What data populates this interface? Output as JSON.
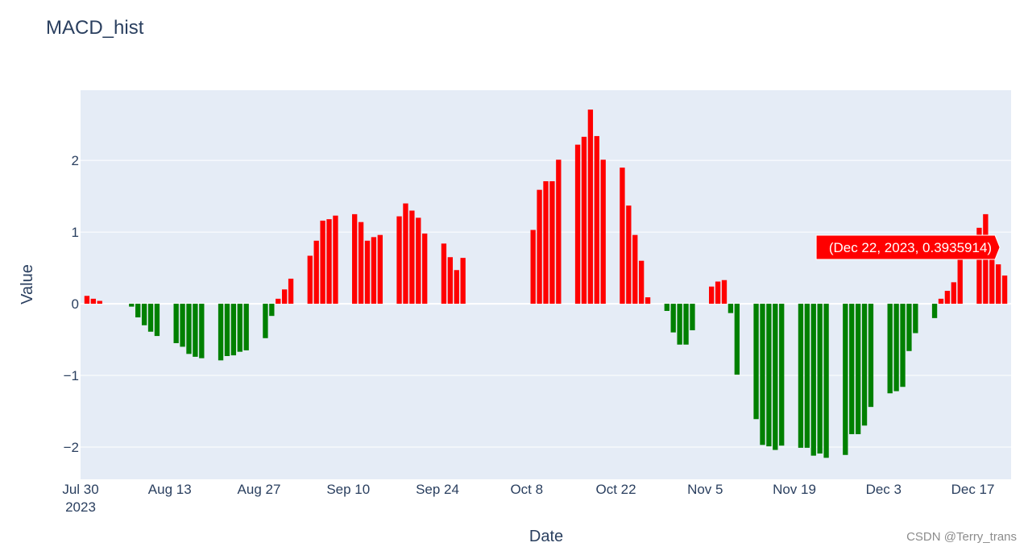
{
  "chart_data": {
    "type": "bar",
    "title": "MACD_hist",
    "xlabel": "Date",
    "ylabel": "Value",
    "x_start": "2023-07-31",
    "x_range": [
      "2023-07-30",
      "2023-12-23"
    ],
    "ylim": [
      -2.45,
      2.98
    ],
    "yticks": [
      -2,
      -1,
      0,
      1,
      2
    ],
    "ytick_labels": [
      "−2",
      "−1",
      "0",
      "1",
      "2"
    ],
    "xticks": [
      {
        "date": "2023-07-30",
        "label": "Jul 30",
        "sublabel": "2023"
      },
      {
        "date": "2023-08-13",
        "label": "Aug 13"
      },
      {
        "date": "2023-08-27",
        "label": "Aug 27"
      },
      {
        "date": "2023-09-10",
        "label": "Sep 10"
      },
      {
        "date": "2023-09-24",
        "label": "Sep 24"
      },
      {
        "date": "2023-10-08",
        "label": "Oct 8"
      },
      {
        "date": "2023-10-22",
        "label": "Oct 22"
      },
      {
        "date": "2023-11-05",
        "label": "Nov 5"
      },
      {
        "date": "2023-11-19",
        "label": "Nov 19"
      },
      {
        "date": "2023-12-03",
        "label": "Dec 3"
      },
      {
        "date": "2023-12-17",
        "label": "Dec 17"
      }
    ],
    "grid": true,
    "positive_color": "#ff0000",
    "negative_color": "#008000",
    "plot_bg": "#e5ecf6",
    "points": [
      {
        "x": "2023-07-31",
        "y": 0.11
      },
      {
        "x": "2023-08-01",
        "y": 0.07
      },
      {
        "x": "2023-08-02",
        "y": 0.04
      },
      {
        "x": "2023-08-07",
        "y": -0.04
      },
      {
        "x": "2023-08-08",
        "y": -0.19
      },
      {
        "x": "2023-08-09",
        "y": -0.3
      },
      {
        "x": "2023-08-10",
        "y": -0.39
      },
      {
        "x": "2023-08-11",
        "y": -0.45
      },
      {
        "x": "2023-08-14",
        "y": -0.55
      },
      {
        "x": "2023-08-15",
        "y": -0.6
      },
      {
        "x": "2023-08-16",
        "y": -0.7
      },
      {
        "x": "2023-08-17",
        "y": -0.74
      },
      {
        "x": "2023-08-18",
        "y": -0.76
      },
      {
        "x": "2023-08-21",
        "y": -0.79
      },
      {
        "x": "2023-08-22",
        "y": -0.73
      },
      {
        "x": "2023-08-23",
        "y": -0.72
      },
      {
        "x": "2023-08-24",
        "y": -0.67
      },
      {
        "x": "2023-08-25",
        "y": -0.65
      },
      {
        "x": "2023-08-28",
        "y": -0.48
      },
      {
        "x": "2023-08-29",
        "y": -0.17
      },
      {
        "x": "2023-08-30",
        "y": 0.07
      },
      {
        "x": "2023-08-31",
        "y": 0.2
      },
      {
        "x": "2023-09-01",
        "y": 0.35
      },
      {
        "x": "2023-09-04",
        "y": 0.67
      },
      {
        "x": "2023-09-05",
        "y": 0.88
      },
      {
        "x": "2023-09-06",
        "y": 1.16
      },
      {
        "x": "2023-09-07",
        "y": 1.18
      },
      {
        "x": "2023-09-08",
        "y": 1.23
      },
      {
        "x": "2023-09-11",
        "y": 1.25
      },
      {
        "x": "2023-09-12",
        "y": 1.14
      },
      {
        "x": "2023-09-13",
        "y": 0.88
      },
      {
        "x": "2023-09-14",
        "y": 0.93
      },
      {
        "x": "2023-09-15",
        "y": 0.96
      },
      {
        "x": "2023-09-18",
        "y": 1.22
      },
      {
        "x": "2023-09-19",
        "y": 1.4
      },
      {
        "x": "2023-09-20",
        "y": 1.3
      },
      {
        "x": "2023-09-21",
        "y": 1.2
      },
      {
        "x": "2023-09-22",
        "y": 0.98
      },
      {
        "x": "2023-09-25",
        "y": 0.84
      },
      {
        "x": "2023-09-26",
        "y": 0.65
      },
      {
        "x": "2023-09-27",
        "y": 0.47
      },
      {
        "x": "2023-09-28",
        "y": 0.64
      },
      {
        "x": "2023-10-09",
        "y": 1.03
      },
      {
        "x": "2023-10-10",
        "y": 1.59
      },
      {
        "x": "2023-10-11",
        "y": 1.71
      },
      {
        "x": "2023-10-12",
        "y": 1.71
      },
      {
        "x": "2023-10-13",
        "y": 2.01
      },
      {
        "x": "2023-10-16",
        "y": 2.22
      },
      {
        "x": "2023-10-17",
        "y": 2.33
      },
      {
        "x": "2023-10-18",
        "y": 2.71
      },
      {
        "x": "2023-10-19",
        "y": 2.34
      },
      {
        "x": "2023-10-20",
        "y": 2.01
      },
      {
        "x": "2023-10-23",
        "y": 1.9
      },
      {
        "x": "2023-10-24",
        "y": 1.37
      },
      {
        "x": "2023-10-25",
        "y": 0.96
      },
      {
        "x": "2023-10-26",
        "y": 0.6
      },
      {
        "x": "2023-10-27",
        "y": 0.09
      },
      {
        "x": "2023-10-30",
        "y": -0.1
      },
      {
        "x": "2023-10-31",
        "y": -0.4
      },
      {
        "x": "2023-11-01",
        "y": -0.57
      },
      {
        "x": "2023-11-02",
        "y": -0.57
      },
      {
        "x": "2023-11-03",
        "y": -0.37
      },
      {
        "x": "2023-11-06",
        "y": 0.24
      },
      {
        "x": "2023-11-07",
        "y": 0.31
      },
      {
        "x": "2023-11-08",
        "y": 0.33
      },
      {
        "x": "2023-11-09",
        "y": -0.13
      },
      {
        "x": "2023-11-10",
        "y": -0.99
      },
      {
        "x": "2023-11-13",
        "y": -1.61
      },
      {
        "x": "2023-11-14",
        "y": -1.97
      },
      {
        "x": "2023-11-15",
        "y": -1.99
      },
      {
        "x": "2023-11-16",
        "y": -2.04
      },
      {
        "x": "2023-11-17",
        "y": -1.98
      },
      {
        "x": "2023-11-20",
        "y": -2.01
      },
      {
        "x": "2023-11-21",
        "y": -2.01
      },
      {
        "x": "2023-11-22",
        "y": -2.12
      },
      {
        "x": "2023-11-23",
        "y": -2.09
      },
      {
        "x": "2023-11-24",
        "y": -2.15
      },
      {
        "x": "2023-11-27",
        "y": -2.11
      },
      {
        "x": "2023-11-28",
        "y": -1.82
      },
      {
        "x": "2023-11-29",
        "y": -1.82
      },
      {
        "x": "2023-11-30",
        "y": -1.7
      },
      {
        "x": "2023-12-01",
        "y": -1.44
      },
      {
        "x": "2023-12-04",
        "y": -1.25
      },
      {
        "x": "2023-12-05",
        "y": -1.22
      },
      {
        "x": "2023-12-06",
        "y": -1.16
      },
      {
        "x": "2023-12-07",
        "y": -0.66
      },
      {
        "x": "2023-12-08",
        "y": -0.41
      },
      {
        "x": "2023-12-11",
        "y": -0.2
      },
      {
        "x": "2023-12-12",
        "y": 0.07
      },
      {
        "x": "2023-12-13",
        "y": 0.18
      },
      {
        "x": "2023-12-14",
        "y": 0.3
      },
      {
        "x": "2023-12-15",
        "y": 0.66
      },
      {
        "x": "2023-12-18",
        "y": 1.06
      },
      {
        "x": "2023-12-19",
        "y": 1.25
      },
      {
        "x": "2023-12-20",
        "y": 0.84
      },
      {
        "x": "2023-12-21",
        "y": 0.55
      },
      {
        "x": "2023-12-22",
        "y": 0.3935914
      }
    ]
  },
  "hover_label": {
    "text": "(Dec 22, 2023, 0.3935914)",
    "x": "2023-12-22",
    "y": 0.3935914,
    "color": "#ff0000"
  },
  "watermark": "CSDN @Terry_trans"
}
